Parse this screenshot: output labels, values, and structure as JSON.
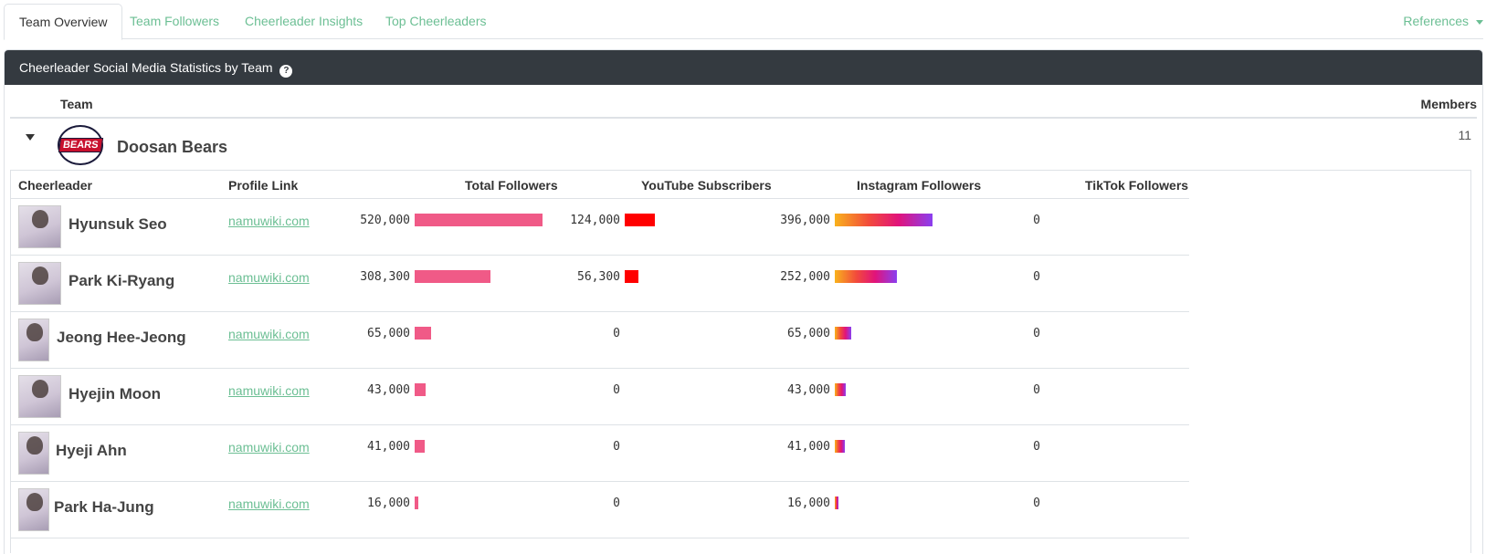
{
  "tabs": [
    {
      "label": "Team Overview",
      "active": true
    },
    {
      "label": "Team Followers",
      "active": false
    },
    {
      "label": "Cheerleader Insights",
      "active": false
    },
    {
      "label": "Top Cheerleaders",
      "active": false
    }
  ],
  "references_label": "References",
  "card": {
    "title": "Cheerleader Social Media Statistics by Team",
    "help_icon": "?"
  },
  "team_table": {
    "col_team": "Team",
    "col_members": "Members"
  },
  "team": {
    "name": "Doosan Bears",
    "logo_text": "BEARS",
    "members": "11"
  },
  "columns": {
    "cheerleader": "Cheerleader",
    "profile_link": "Profile Link",
    "total_followers": "Total Followers",
    "youtube": "YouTube Subscribers",
    "instagram": "Instagram Followers",
    "tiktok": "TikTok Followers"
  },
  "max_value": 520000,
  "colors": {
    "total": "#f05a87",
    "youtube": "#ff0000",
    "link": "#6cbf94",
    "header_bg": "#343a40"
  },
  "cheerleaders": [
    {
      "name": "Hyunsuk Seo",
      "link": "namuwiki.com",
      "total": "520,000",
      "total_v": 520000,
      "youtube": "124,000",
      "youtube_v": 124000,
      "instagram": "396,000",
      "instagram_v": 396000,
      "tiktok": "0"
    },
    {
      "name": "Park Ki-Ryang",
      "link": "namuwiki.com",
      "total": "308,300",
      "total_v": 308300,
      "youtube": "56,300",
      "youtube_v": 56300,
      "instagram": "252,000",
      "instagram_v": 252000,
      "tiktok": "0"
    },
    {
      "name": "Jeong Hee-Jeong",
      "link": "namuwiki.com",
      "total": "65,000",
      "total_v": 65000,
      "youtube": "0",
      "youtube_v": 0,
      "instagram": "65,000",
      "instagram_v": 65000,
      "tiktok": "0"
    },
    {
      "name": "Hyejin Moon",
      "link": "namuwiki.com",
      "total": "43,000",
      "total_v": 43000,
      "youtube": "0",
      "youtube_v": 0,
      "instagram": "43,000",
      "instagram_v": 43000,
      "tiktok": "0"
    },
    {
      "name": "Hyeji Ahn",
      "link": "namuwiki.com",
      "total": "41,000",
      "total_v": 41000,
      "youtube": "0",
      "youtube_v": 0,
      "instagram": "41,000",
      "instagram_v": 41000,
      "tiktok": "0"
    },
    {
      "name": "Park Ha-Jung",
      "link": "namuwiki.com",
      "total": "16,000",
      "total_v": 16000,
      "youtube": "0",
      "youtube_v": 0,
      "instagram": "16,000",
      "instagram_v": 16000,
      "tiktok": "0"
    }
  ]
}
